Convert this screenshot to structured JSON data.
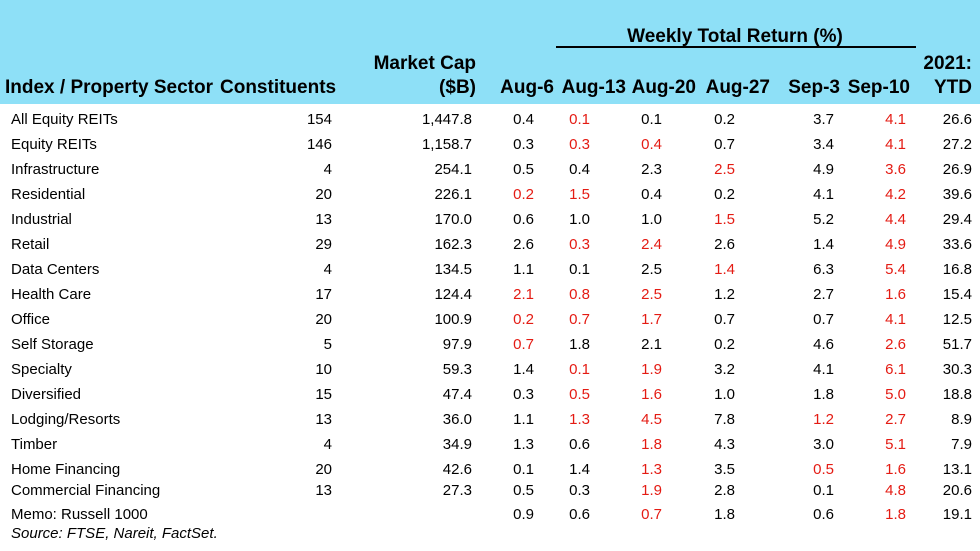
{
  "header": {
    "group_title": "Weekly Total Return (%)",
    "col_sector": "Index / Property Sector",
    "col_constituents": "Constituents",
    "col_mcap_line1": "Market Cap",
    "col_mcap_line2": "($B)",
    "weeks": [
      "Aug-6",
      "Aug-13",
      "Aug-20",
      "Aug-27",
      "Sep-3",
      "Sep-10"
    ],
    "ytd_line1": "2021:",
    "ytd_line2": "YTD"
  },
  "negative_color": "#e41b13",
  "header_bg": "#8ee0f7",
  "rows": [
    {
      "sector": "All Equity REITs",
      "constituents": "154",
      "mcap": "1,447.8",
      "weeks": [
        "0.4",
        "0.1",
        "0.1",
        "0.2",
        "3.7",
        "4.1"
      ],
      "neg": [
        false,
        true,
        false,
        false,
        false,
        true
      ],
      "ytd": "26.6"
    },
    {
      "sector": "Equity REITs",
      "constituents": "146",
      "mcap": "1,158.7",
      "weeks": [
        "0.3",
        "0.3",
        "0.4",
        "0.7",
        "3.4",
        "4.1"
      ],
      "neg": [
        false,
        true,
        true,
        false,
        false,
        true
      ],
      "ytd": "27.2"
    },
    {
      "sector": "Infrastructure",
      "constituents": "4",
      "mcap": "254.1",
      "weeks": [
        "0.5",
        "0.4",
        "2.3",
        "2.5",
        "4.9",
        "3.6"
      ],
      "neg": [
        false,
        false,
        false,
        true,
        false,
        true
      ],
      "ytd": "26.9"
    },
    {
      "sector": "Residential",
      "constituents": "20",
      "mcap": "226.1",
      "weeks": [
        "0.2",
        "1.5",
        "0.4",
        "0.2",
        "4.1",
        "4.2"
      ],
      "neg": [
        true,
        true,
        false,
        false,
        false,
        true
      ],
      "ytd": "39.6"
    },
    {
      "sector": "Industrial",
      "constituents": "13",
      "mcap": "170.0",
      "weeks": [
        "0.6",
        "1.0",
        "1.0",
        "1.5",
        "5.2",
        "4.4"
      ],
      "neg": [
        false,
        false,
        false,
        true,
        false,
        true
      ],
      "ytd": "29.4"
    },
    {
      "sector": "Retail",
      "constituents": "29",
      "mcap": "162.3",
      "weeks": [
        "2.6",
        "0.3",
        "2.4",
        "2.6",
        "1.4",
        "4.9"
      ],
      "neg": [
        false,
        true,
        true,
        false,
        false,
        true
      ],
      "ytd": "33.6"
    },
    {
      "sector": "Data Centers",
      "constituents": "4",
      "mcap": "134.5",
      "weeks": [
        "1.1",
        "0.1",
        "2.5",
        "1.4",
        "6.3",
        "5.4"
      ],
      "neg": [
        false,
        false,
        false,
        true,
        false,
        true
      ],
      "ytd": "16.8"
    },
    {
      "sector": "Health Care",
      "constituents": "17",
      "mcap": "124.4",
      "weeks": [
        "2.1",
        "0.8",
        "2.5",
        "1.2",
        "2.7",
        "1.6"
      ],
      "neg": [
        true,
        true,
        true,
        false,
        false,
        true
      ],
      "ytd": "15.4"
    },
    {
      "sector": "Office",
      "constituents": "20",
      "mcap": "100.9",
      "weeks": [
        "0.2",
        "0.7",
        "1.7",
        "0.7",
        "0.7",
        "4.1"
      ],
      "neg": [
        true,
        true,
        true,
        false,
        false,
        true
      ],
      "ytd": "12.5"
    },
    {
      "sector": "Self Storage",
      "constituents": "5",
      "mcap": "97.9",
      "weeks": [
        "0.7",
        "1.8",
        "2.1",
        "0.2",
        "4.6",
        "2.6"
      ],
      "neg": [
        true,
        false,
        false,
        false,
        false,
        true
      ],
      "ytd": "51.7"
    },
    {
      "sector": "Specialty",
      "constituents": "10",
      "mcap": "59.3",
      "weeks": [
        "1.4",
        "0.1",
        "1.9",
        "3.2",
        "4.1",
        "6.1"
      ],
      "neg": [
        false,
        true,
        true,
        false,
        false,
        true
      ],
      "ytd": "30.3"
    },
    {
      "sector": "Diversified",
      "constituents": "15",
      "mcap": "47.4",
      "weeks": [
        "0.3",
        "0.5",
        "1.6",
        "1.0",
        "1.8",
        "5.0"
      ],
      "neg": [
        false,
        true,
        true,
        false,
        false,
        true
      ],
      "ytd": "18.8"
    },
    {
      "sector": "Lodging/Resorts",
      "constituents": "13",
      "mcap": "36.0",
      "weeks": [
        "1.1",
        "1.3",
        "4.5",
        "7.8",
        "1.2",
        "2.7"
      ],
      "neg": [
        false,
        true,
        true,
        false,
        true,
        true
      ],
      "ytd": "8.9"
    },
    {
      "sector": "Timber",
      "constituents": "4",
      "mcap": "34.9",
      "weeks": [
        "1.3",
        "0.6",
        "1.8",
        "4.3",
        "3.0",
        "5.1"
      ],
      "neg": [
        false,
        false,
        true,
        false,
        false,
        true
      ],
      "ytd": "7.9"
    },
    {
      "sector": "Home Financing",
      "constituents": "20",
      "mcap": "42.6",
      "weeks": [
        "0.1",
        "1.4",
        "1.3",
        "3.5",
        "0.5",
        "1.6"
      ],
      "neg": [
        false,
        false,
        true,
        false,
        true,
        true
      ],
      "ytd": "13.1"
    },
    {
      "sector": "Commercial Financing",
      "constituents": "13",
      "mcap": "27.3",
      "weeks": [
        "0.5",
        "0.3",
        "1.9",
        "2.8",
        "0.1",
        "4.8"
      ],
      "neg": [
        false,
        false,
        true,
        false,
        false,
        true
      ],
      "ytd": "20.6"
    },
    {
      "sector": "Memo: Russell 1000",
      "constituents": "",
      "mcap": "",
      "weeks": [
        "0.9",
        "0.6",
        "0.7",
        "1.8",
        "0.6",
        "1.8"
      ],
      "neg": [
        false,
        false,
        true,
        false,
        false,
        true
      ],
      "ytd": "19.1"
    }
  ],
  "source": "Source: FTSE, Nareit, FactSet."
}
